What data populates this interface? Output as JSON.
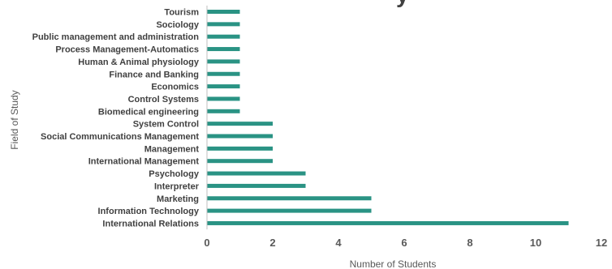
{
  "chart_data": {
    "type": "bar",
    "orientation": "horizontal",
    "title_fragment": "y",
    "xlabel": "Number of Students",
    "ylabel": "Field of Study",
    "xlim": [
      0,
      12
    ],
    "xticks": [
      0,
      2,
      4,
      6,
      8,
      10,
      12
    ],
    "grid": false,
    "legend": "none",
    "bar_color": "#2a9384",
    "categories": [
      "Tourism",
      "Sociology",
      "Public management and administration",
      "Process Management-Automatics",
      "Human & Animal physiology",
      "Finance and Banking",
      "Economics",
      "Control Systems",
      "Biomedical engineering",
      "System Control",
      "Social Communications Management",
      "Management",
      "International Management",
      "Psychology",
      "Interpreter",
      "Marketing",
      "Information Technology",
      "International Relations"
    ],
    "values": [
      1,
      1,
      1,
      1,
      1,
      1,
      1,
      1,
      1,
      2,
      2,
      2,
      2,
      3,
      3,
      5,
      5,
      11
    ]
  }
}
